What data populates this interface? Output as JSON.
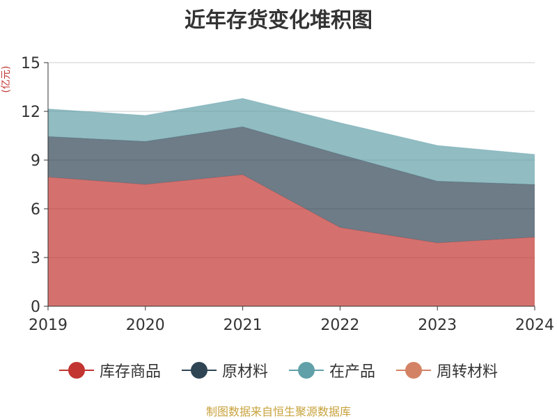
{
  "chart_data": {
    "type": "area",
    "stacked": true,
    "title": "近年存货变化堆积图",
    "unit_label": "(亿元)",
    "x": [
      "2019",
      "2020",
      "2021",
      "2022",
      "2023",
      "2024"
    ],
    "ylim": [
      0,
      15
    ],
    "yticks": [
      0,
      3,
      6,
      9,
      12,
      15
    ],
    "grid": true,
    "legend_position": "bottom",
    "series": [
      {
        "name": "库存商品",
        "values": [
          7.95,
          7.5,
          8.1,
          4.85,
          3.9,
          4.25
        ],
        "color": "#c23531"
      },
      {
        "name": "原材料",
        "values": [
          2.5,
          2.65,
          2.95,
          4.5,
          3.8,
          3.25
        ],
        "color": "#2f4554"
      },
      {
        "name": "在产品",
        "values": [
          1.7,
          1.6,
          1.75,
          1.95,
          2.2,
          1.85
        ],
        "color": "#61a0a8"
      },
      {
        "name": "周转材料",
        "values": [
          0,
          0,
          0,
          0,
          0,
          0
        ],
        "color": "#d48265"
      }
    ]
  },
  "footer": "制图数据来自恒生聚源数据库"
}
